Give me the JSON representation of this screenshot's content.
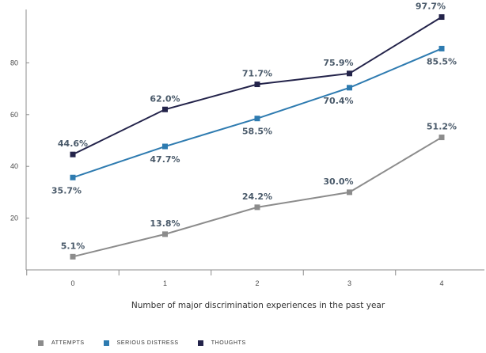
{
  "chart_data": {
    "type": "line",
    "x": [
      0,
      1,
      2,
      3,
      4
    ],
    "xlabel": "Number of major discrimination experiences in the past year",
    "ylabel": "",
    "ylim": [
      0,
      100
    ],
    "y_ticks": [
      20,
      40,
      60,
      80
    ],
    "grid": false,
    "legend_position": "bottom-left",
    "series": [
      {
        "name": "ATTEMPTS",
        "color": "#8c8c8c",
        "values": [
          5.1,
          13.8,
          24.2,
          30.0,
          51.2
        ],
        "labels": [
          "5.1%",
          "13.8%",
          "24.2%",
          "30.0%",
          "51.2%"
        ]
      },
      {
        "name": "SERIOUS DISTRESS",
        "color": "#2e7bb0",
        "values": [
          35.7,
          47.7,
          58.5,
          70.4,
          85.5
        ],
        "labels": [
          "35.7%",
          "47.7%",
          "58.5%",
          "70.4%",
          "85.5%"
        ]
      },
      {
        "name": "THOUGHTS",
        "color": "#23234a",
        "values": [
          44.6,
          62.0,
          71.7,
          75.9,
          97.7
        ],
        "labels": [
          "44.6%",
          "62.0%",
          "71.7%",
          "75.9%",
          "97.7%"
        ]
      }
    ]
  }
}
